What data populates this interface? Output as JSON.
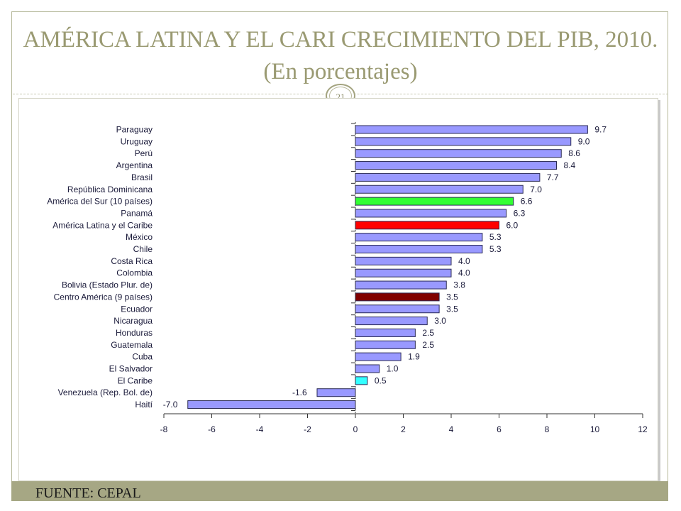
{
  "slide": {
    "title": "AMÉRICA LATINA Y EL CARI CRECIMIENTO DEL PIB, 2010. (En porcentajes)",
    "page_number": "21",
    "source": "FUENTE: CEPAL"
  },
  "colors": {
    "default_bar": "#9999ff",
    "south_america_bar": "#33ff33",
    "latin_america_bar": "#ff0000",
    "central_america_bar": "#800000",
    "caribbean_bar": "#33ffff",
    "title": "#9a9a72",
    "footer_band": "#a6a784"
  },
  "chart_data": {
    "type": "bar",
    "orientation": "horizontal",
    "title": "",
    "xlabel": "",
    "ylabel": "",
    "xlim": [
      -8,
      12
    ],
    "x_ticks": [
      "-8",
      "-6",
      "-4",
      "-2",
      "0",
      "2",
      "4",
      "6",
      "8",
      "10",
      "12"
    ],
    "grid": false,
    "categories": [
      "Paraguay",
      "Uruguay",
      "Perú",
      "Argentina",
      "Brasil",
      "República Dominicana",
      "América del Sur (10 países)",
      "Panamá",
      "América Latina y el Caribe",
      "México",
      "Chile",
      "Costa Rica",
      "Colombia",
      "Bolivia (Estado Plur. de)",
      "Centro América (9 países)",
      "Ecuador",
      "Nicaragua",
      "Honduras",
      "Guatemala",
      "Cuba",
      "El Salvador",
      "El Caribe",
      "Venezuela (Rep. Bol. de)",
      "Haití"
    ],
    "values": [
      9.7,
      9.0,
      8.6,
      8.4,
      7.7,
      7.0,
      6.6,
      6.3,
      6.0,
      5.3,
      5.3,
      4.0,
      4.0,
      3.8,
      3.5,
      3.5,
      3.0,
      2.5,
      2.5,
      1.9,
      1.0,
      0.5,
      -1.6,
      -7.0
    ],
    "value_labels": [
      "9.7",
      "9.0",
      "8.6",
      "8.4",
      "7.7",
      "7.0",
      "6.6",
      "6.3",
      "6.0",
      "5.3",
      "5.3",
      "4.0",
      "4.0",
      "3.8",
      "3.5",
      "3.5",
      "3.0",
      "2.5",
      "2.5",
      "1.9",
      "1.0",
      "0.5",
      "-1.6",
      "-7.0"
    ],
    "bar_colors": [
      "#9999ff",
      "#9999ff",
      "#9999ff",
      "#9999ff",
      "#9999ff",
      "#9999ff",
      "#33ff33",
      "#9999ff",
      "#ff0000",
      "#9999ff",
      "#9999ff",
      "#9999ff",
      "#9999ff",
      "#9999ff",
      "#800000",
      "#9999ff",
      "#9999ff",
      "#9999ff",
      "#9999ff",
      "#9999ff",
      "#9999ff",
      "#33ffff",
      "#9999ff",
      "#9999ff"
    ]
  }
}
